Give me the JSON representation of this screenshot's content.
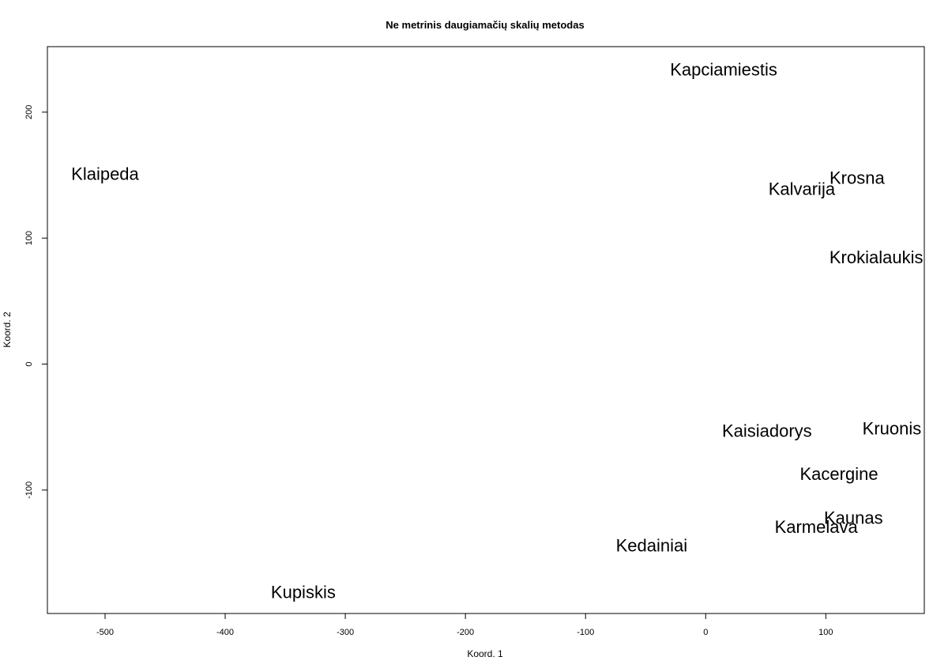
{
  "chart_data": {
    "type": "scatter",
    "title": "Ne metrinis daugiamačių skalių metodas",
    "xlabel": "Koord. 1",
    "ylabel": "Koord. 2",
    "xlim": [
      -548,
      182
    ],
    "ylim": [
      -198,
      252
    ],
    "xticks": [
      -500,
      -400,
      -300,
      -200,
      -100,
      0,
      100
    ],
    "yticks": [
      -100,
      0,
      100,
      200
    ],
    "grid": false,
    "points": [
      {
        "label": "Kapciamiestis",
        "x": 15,
        "y": 234
      },
      {
        "label": "Klaipeda",
        "x": -500,
        "y": 151
      },
      {
        "label": "Krosna",
        "x": 126,
        "y": 148
      },
      {
        "label": "Kalvarija",
        "x": 80,
        "y": 139
      },
      {
        "label": "Krokialaukis",
        "x": 142,
        "y": 85
      },
      {
        "label": "Kaisiadorys",
        "x": 51,
        "y": -53
      },
      {
        "label": "Kruonis",
        "x": 155,
        "y": -51
      },
      {
        "label": "Kacergine",
        "x": 111,
        "y": -87
      },
      {
        "label": "Kaunas",
        "x": 123,
        "y": -122
      },
      {
        "label": "Karmelava",
        "x": 92,
        "y": -129
      },
      {
        "label": "Kedainiai",
        "x": -45,
        "y": -144
      },
      {
        "label": "Kupiskis",
        "x": -335,
        "y": -181
      }
    ]
  }
}
